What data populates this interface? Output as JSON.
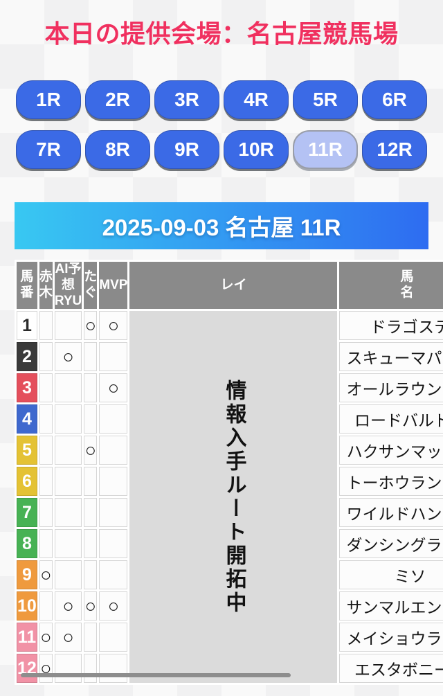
{
  "page_title": "本日の提供会場：名古屋競馬場",
  "race_nav": {
    "races": [
      {
        "label": "1R",
        "selected": false
      },
      {
        "label": "2R",
        "selected": false
      },
      {
        "label": "3R",
        "selected": false
      },
      {
        "label": "4R",
        "selected": false
      },
      {
        "label": "5R",
        "selected": false
      },
      {
        "label": "6R",
        "selected": false
      },
      {
        "label": "7R",
        "selected": false
      },
      {
        "label": "8R",
        "selected": false
      },
      {
        "label": "9R",
        "selected": false
      },
      {
        "label": "10R",
        "selected": false
      },
      {
        "label": "11R",
        "selected": true
      },
      {
        "label": "12R",
        "selected": false
      }
    ]
  },
  "race_banner": {
    "title": "2025-09-03 名古屋 11R"
  },
  "prediction_table": {
    "columns": [
      {
        "key": "num",
        "label": "馬\n番"
      },
      {
        "key": "akagi",
        "label": "赤木"
      },
      {
        "key": "ai_ryu",
        "label": "AI予想\nRYU"
      },
      {
        "key": "tagu",
        "label": "たぐ"
      },
      {
        "key": "mvp",
        "label": "MVP"
      },
      {
        "key": "rei",
        "label": "レイ"
      },
      {
        "key": "name",
        "label": "馬\n名"
      }
    ],
    "rei_notice": "情報入手ルート開拓中",
    "mark_symbol": "○",
    "rows": [
      {
        "num": "1",
        "bg": "#ffffff",
        "fg": "#2b2b2b",
        "akagi": "",
        "ai_ryu": "",
        "tagu": "○",
        "mvp": "○",
        "name": "ドラゴステ"
      },
      {
        "num": "2",
        "bg": "#3a3a3a",
        "fg": "#ffffff",
        "akagi": "",
        "ai_ryu": "○",
        "tagu": "",
        "mvp": "",
        "name": "スキューマパーラ"
      },
      {
        "num": "3",
        "bg": "#e44f5c",
        "fg": "#ffffff",
        "akagi": "",
        "ai_ryu": "",
        "tagu": "",
        "mvp": "○",
        "name": "オールラウンダー"
      },
      {
        "num": "4",
        "bg": "#3e68ce",
        "fg": "#ffffff",
        "akagi": "",
        "ai_ryu": "",
        "tagu": "",
        "mvp": "",
        "name": "ロードバルドル"
      },
      {
        "num": "5",
        "bg": "#e4c234",
        "fg": "#ffffff",
        "akagi": "",
        "ai_ryu": "",
        "tagu": "○",
        "mvp": "",
        "name": "ハクサンマックス"
      },
      {
        "num": "6",
        "bg": "#e4c234",
        "fg": "#ffffff",
        "akagi": "",
        "ai_ryu": "",
        "tagu": "",
        "mvp": "",
        "name": "トーホウランボー"
      },
      {
        "num": "7",
        "bg": "#47b254",
        "fg": "#ffffff",
        "akagi": "",
        "ai_ryu": "",
        "tagu": "",
        "mvp": "",
        "name": "ワイルドハンター"
      },
      {
        "num": "8",
        "bg": "#47b254",
        "fg": "#ffffff",
        "akagi": "",
        "ai_ryu": "",
        "tagu": "",
        "mvp": "",
        "name": "ダンシングラブリ"
      },
      {
        "num": "9",
        "bg": "#ef9a3e",
        "fg": "#ffffff",
        "akagi": "○",
        "ai_ryu": "",
        "tagu": "",
        "mvp": "",
        "name": "ミソ"
      },
      {
        "num": "10",
        "bg": "#ef9a3e",
        "fg": "#ffffff",
        "akagi": "",
        "ai_ryu": "○",
        "tagu": "○",
        "mvp": "○",
        "name": "サンマルエンパイ"
      },
      {
        "num": "11",
        "bg": "#f192a6",
        "fg": "#ffffff",
        "akagi": "○",
        "ai_ryu": "○",
        "tagu": "",
        "mvp": "",
        "name": "メイショウライメ"
      },
      {
        "num": "12",
        "bg": "#f192a6",
        "fg": "#ffffff",
        "akagi": "○",
        "ai_ryu": "",
        "tagu": "",
        "mvp": "",
        "name": "エスタボニート"
      }
    ]
  },
  "colors": {
    "title_pink": "#f0305f",
    "race_button_blue": "#3b6ae6",
    "race_button_selected": "#b4c2f4",
    "banner_gradient_from": "#38c8f2",
    "banner_gradient_to": "#2e6cf1",
    "table_header_gray": "#8a8a8a",
    "rei_column_gray": "#dbdbdb"
  }
}
